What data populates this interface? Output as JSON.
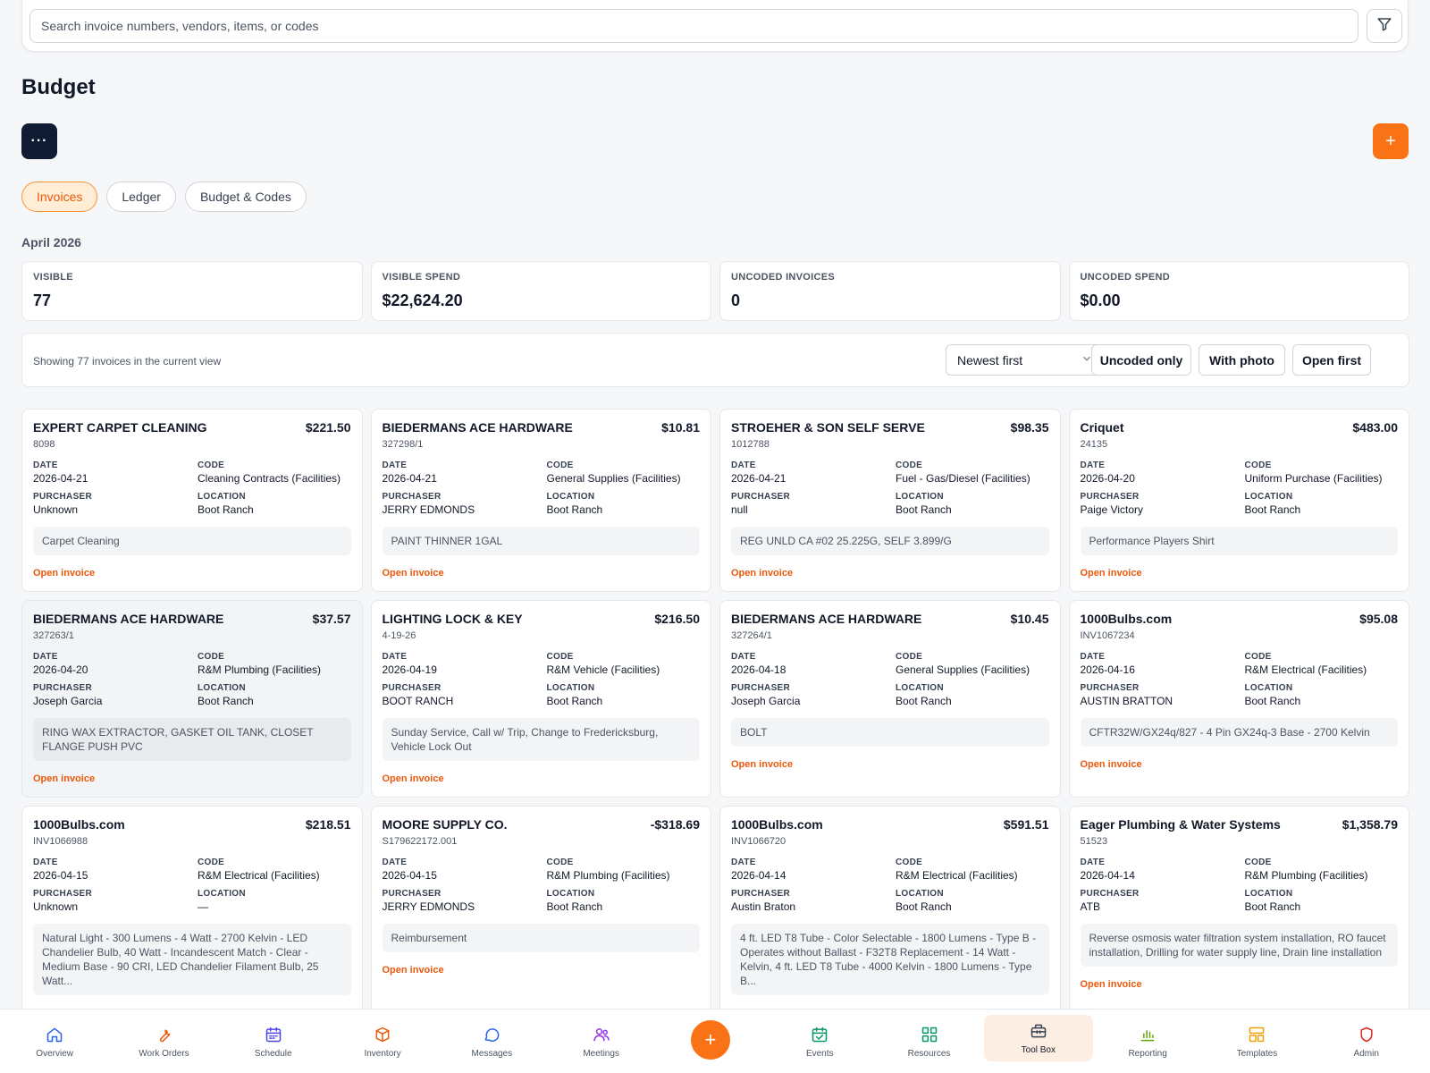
{
  "search": {
    "placeholder": "Search invoice numbers, vendors, items, or codes"
  },
  "page": {
    "title": "Budget",
    "more_label": "···",
    "add_label": "+"
  },
  "tabs": [
    {
      "label": "Invoices",
      "active": true
    },
    {
      "label": "Ledger",
      "active": false
    },
    {
      "label": "Budget & Codes",
      "active": false
    }
  ],
  "period": "April 2026",
  "stats": [
    {
      "label": "VISIBLE",
      "value": "77"
    },
    {
      "label": "VISIBLE SPEND",
      "value": "$22,624.20"
    },
    {
      "label": "UNCODED INVOICES",
      "value": "0"
    },
    {
      "label": "UNCODED SPEND",
      "value": "$0.00"
    }
  ],
  "toolbar": {
    "showing": "Showing 77 invoices in the current view",
    "sort_value": "Newest first",
    "uncoded_label": "Uncoded only",
    "photo_label": "With photo",
    "open_label": "Open first"
  },
  "labels": {
    "date": "DATE",
    "code": "CODE",
    "purchaser": "PURCHASER",
    "location": "LOCATION",
    "open_invoice": "Open invoice"
  },
  "invoices": [
    {
      "vendor": "EXPERT CARPET CLEANING",
      "amount": "$221.50",
      "number": "8098",
      "date": "2026-04-21",
      "code": "Cleaning Contracts (Facilities)",
      "purchaser": "Unknown",
      "location": "Boot Ranch",
      "description": "Carpet Cleaning"
    },
    {
      "vendor": "BIEDERMANS ACE HARDWARE",
      "amount": "$10.81",
      "number": "327298/1",
      "date": "2026-04-21",
      "code": "General Supplies (Facilities)",
      "purchaser": "JERRY EDMONDS",
      "location": "Boot Ranch",
      "description": "PAINT THINNER 1GAL"
    },
    {
      "vendor": "STROEHER & SON SELF SERVE",
      "amount": "$98.35",
      "number": "1012788",
      "date": "2026-04-21",
      "code": "Fuel - Gas/Diesel (Facilities)",
      "purchaser": "null",
      "location": "Boot Ranch",
      "description": "REG UNLD CA #02 25.225G, SELF 3.899/G"
    },
    {
      "vendor": "Criquet",
      "amount": "$483.00",
      "number": "24135",
      "date": "2026-04-20",
      "code": "Uniform Purchase (Facilities)",
      "purchaser": "Paige Victory",
      "location": "Boot Ranch",
      "description": "Performance Players Shirt"
    },
    {
      "vendor": "BIEDERMANS ACE HARDWARE",
      "amount": "$37.57",
      "number": "327263/1",
      "date": "2026-04-20",
      "code": "R&M Plumbing (Facilities)",
      "purchaser": "Joseph Garcia",
      "location": "Boot Ranch",
      "description": "RING WAX EXTRACTOR, GASKET OIL TANK, CLOSET FLANGE PUSH PVC"
    },
    {
      "vendor": "LIGHTING LOCK & KEY",
      "amount": "$216.50",
      "number": "4-19-26",
      "date": "2026-04-19",
      "code": "R&M Vehicle (Facilities)",
      "purchaser": "BOOT RANCH",
      "location": "Boot Ranch",
      "description": "Sunday Service, Call w/ Trip, Change to Fredericksburg, Vehicle Lock Out"
    },
    {
      "vendor": "BIEDERMANS ACE HARDWARE",
      "amount": "$10.45",
      "number": "327264/1",
      "date": "2026-04-18",
      "code": "General Supplies (Facilities)",
      "purchaser": "Joseph Garcia",
      "location": "Boot Ranch",
      "description": "BOLT"
    },
    {
      "vendor": "1000Bulbs.com",
      "amount": "$95.08",
      "number": "INV1067234",
      "date": "2026-04-16",
      "code": "R&M Electrical (Facilities)",
      "purchaser": "AUSTIN BRATTON",
      "location": "Boot Ranch",
      "description": "CFTR32W/GX24q/827 - 4 Pin GX24q-3 Base - 2700 Kelvin"
    },
    {
      "vendor": "1000Bulbs.com",
      "amount": "$218.51",
      "number": "INV1066988",
      "date": "2026-04-15",
      "code": "R&M Electrical (Facilities)",
      "purchaser": "Unknown",
      "location": "—",
      "description": "Natural Light - 300 Lumens - 4 Watt - 2700 Kelvin - LED Chandelier Bulb, 40 Watt - Incandescent Match - Clear - Medium Base - 90 CRI, LED Chandelier Filament Bulb, 25 Watt..."
    },
    {
      "vendor": "MOORE SUPPLY CO.",
      "amount": "-$318.69",
      "number": "S179622172.001",
      "date": "2026-04-15",
      "code": "R&M Plumbing (Facilities)",
      "purchaser": "JERRY EDMONDS",
      "location": "Boot Ranch",
      "description": "Reimbursement"
    },
    {
      "vendor": "1000Bulbs.com",
      "amount": "$591.51",
      "number": "INV1066720",
      "date": "2026-04-14",
      "code": "R&M Electrical (Facilities)",
      "purchaser": "Austin Braton",
      "location": "Boot Ranch",
      "description": "4 ft. LED T8 Tube - Color Selectable - 1800 Lumens - Type B - Operates without Ballast - F32T8 Replacement - 14 Watt - Kelvin, 4 ft. LED T8 Tube - 4000 Kelvin - 1800 Lumens - Type B..."
    },
    {
      "vendor": "Eager Plumbing & Water Systems",
      "amount": "$1,358.79",
      "number": "51523",
      "date": "2026-04-14",
      "code": "R&M Plumbing (Facilities)",
      "purchaser": "ATB",
      "location": "Boot Ranch",
      "description": "Reverse osmosis water filtration system installation, RO faucet installation, Drilling for water supply line, Drain line installation"
    }
  ],
  "nav": [
    {
      "label": "Overview",
      "icon": "home-icon",
      "color": "#2563eb"
    },
    {
      "label": "Work Orders",
      "icon": "wrench-icon",
      "color": "#ea580c"
    },
    {
      "label": "Schedule",
      "icon": "calendar-icon",
      "color": "#4f46e5"
    },
    {
      "label": "Inventory",
      "icon": "box-icon",
      "color": "#ea580c"
    },
    {
      "label": "Messages",
      "icon": "chat-icon",
      "color": "#2563eb"
    },
    {
      "label": "Meetings",
      "icon": "users-icon",
      "color": "#9333ea"
    },
    {
      "label": "Events",
      "icon": "calendar-check-icon",
      "color": "#059669"
    },
    {
      "label": "Resources",
      "icon": "grid-icon",
      "color": "#059669"
    },
    {
      "label": "Tool Box",
      "icon": "toolbox-icon",
      "color": "#374151"
    },
    {
      "label": "Reporting",
      "icon": "bar-chart-icon",
      "color": "#65a30d"
    },
    {
      "label": "Templates",
      "icon": "templates-icon",
      "color": "#f59e0b"
    },
    {
      "label": "Admin",
      "icon": "shield-icon",
      "color": "#dc2626"
    }
  ],
  "nav_fab_label": "+",
  "active_nav": "Tool Box",
  "colors": {
    "accent": "#f97316",
    "dark": "#0f1b33",
    "link": "#ea580c"
  }
}
